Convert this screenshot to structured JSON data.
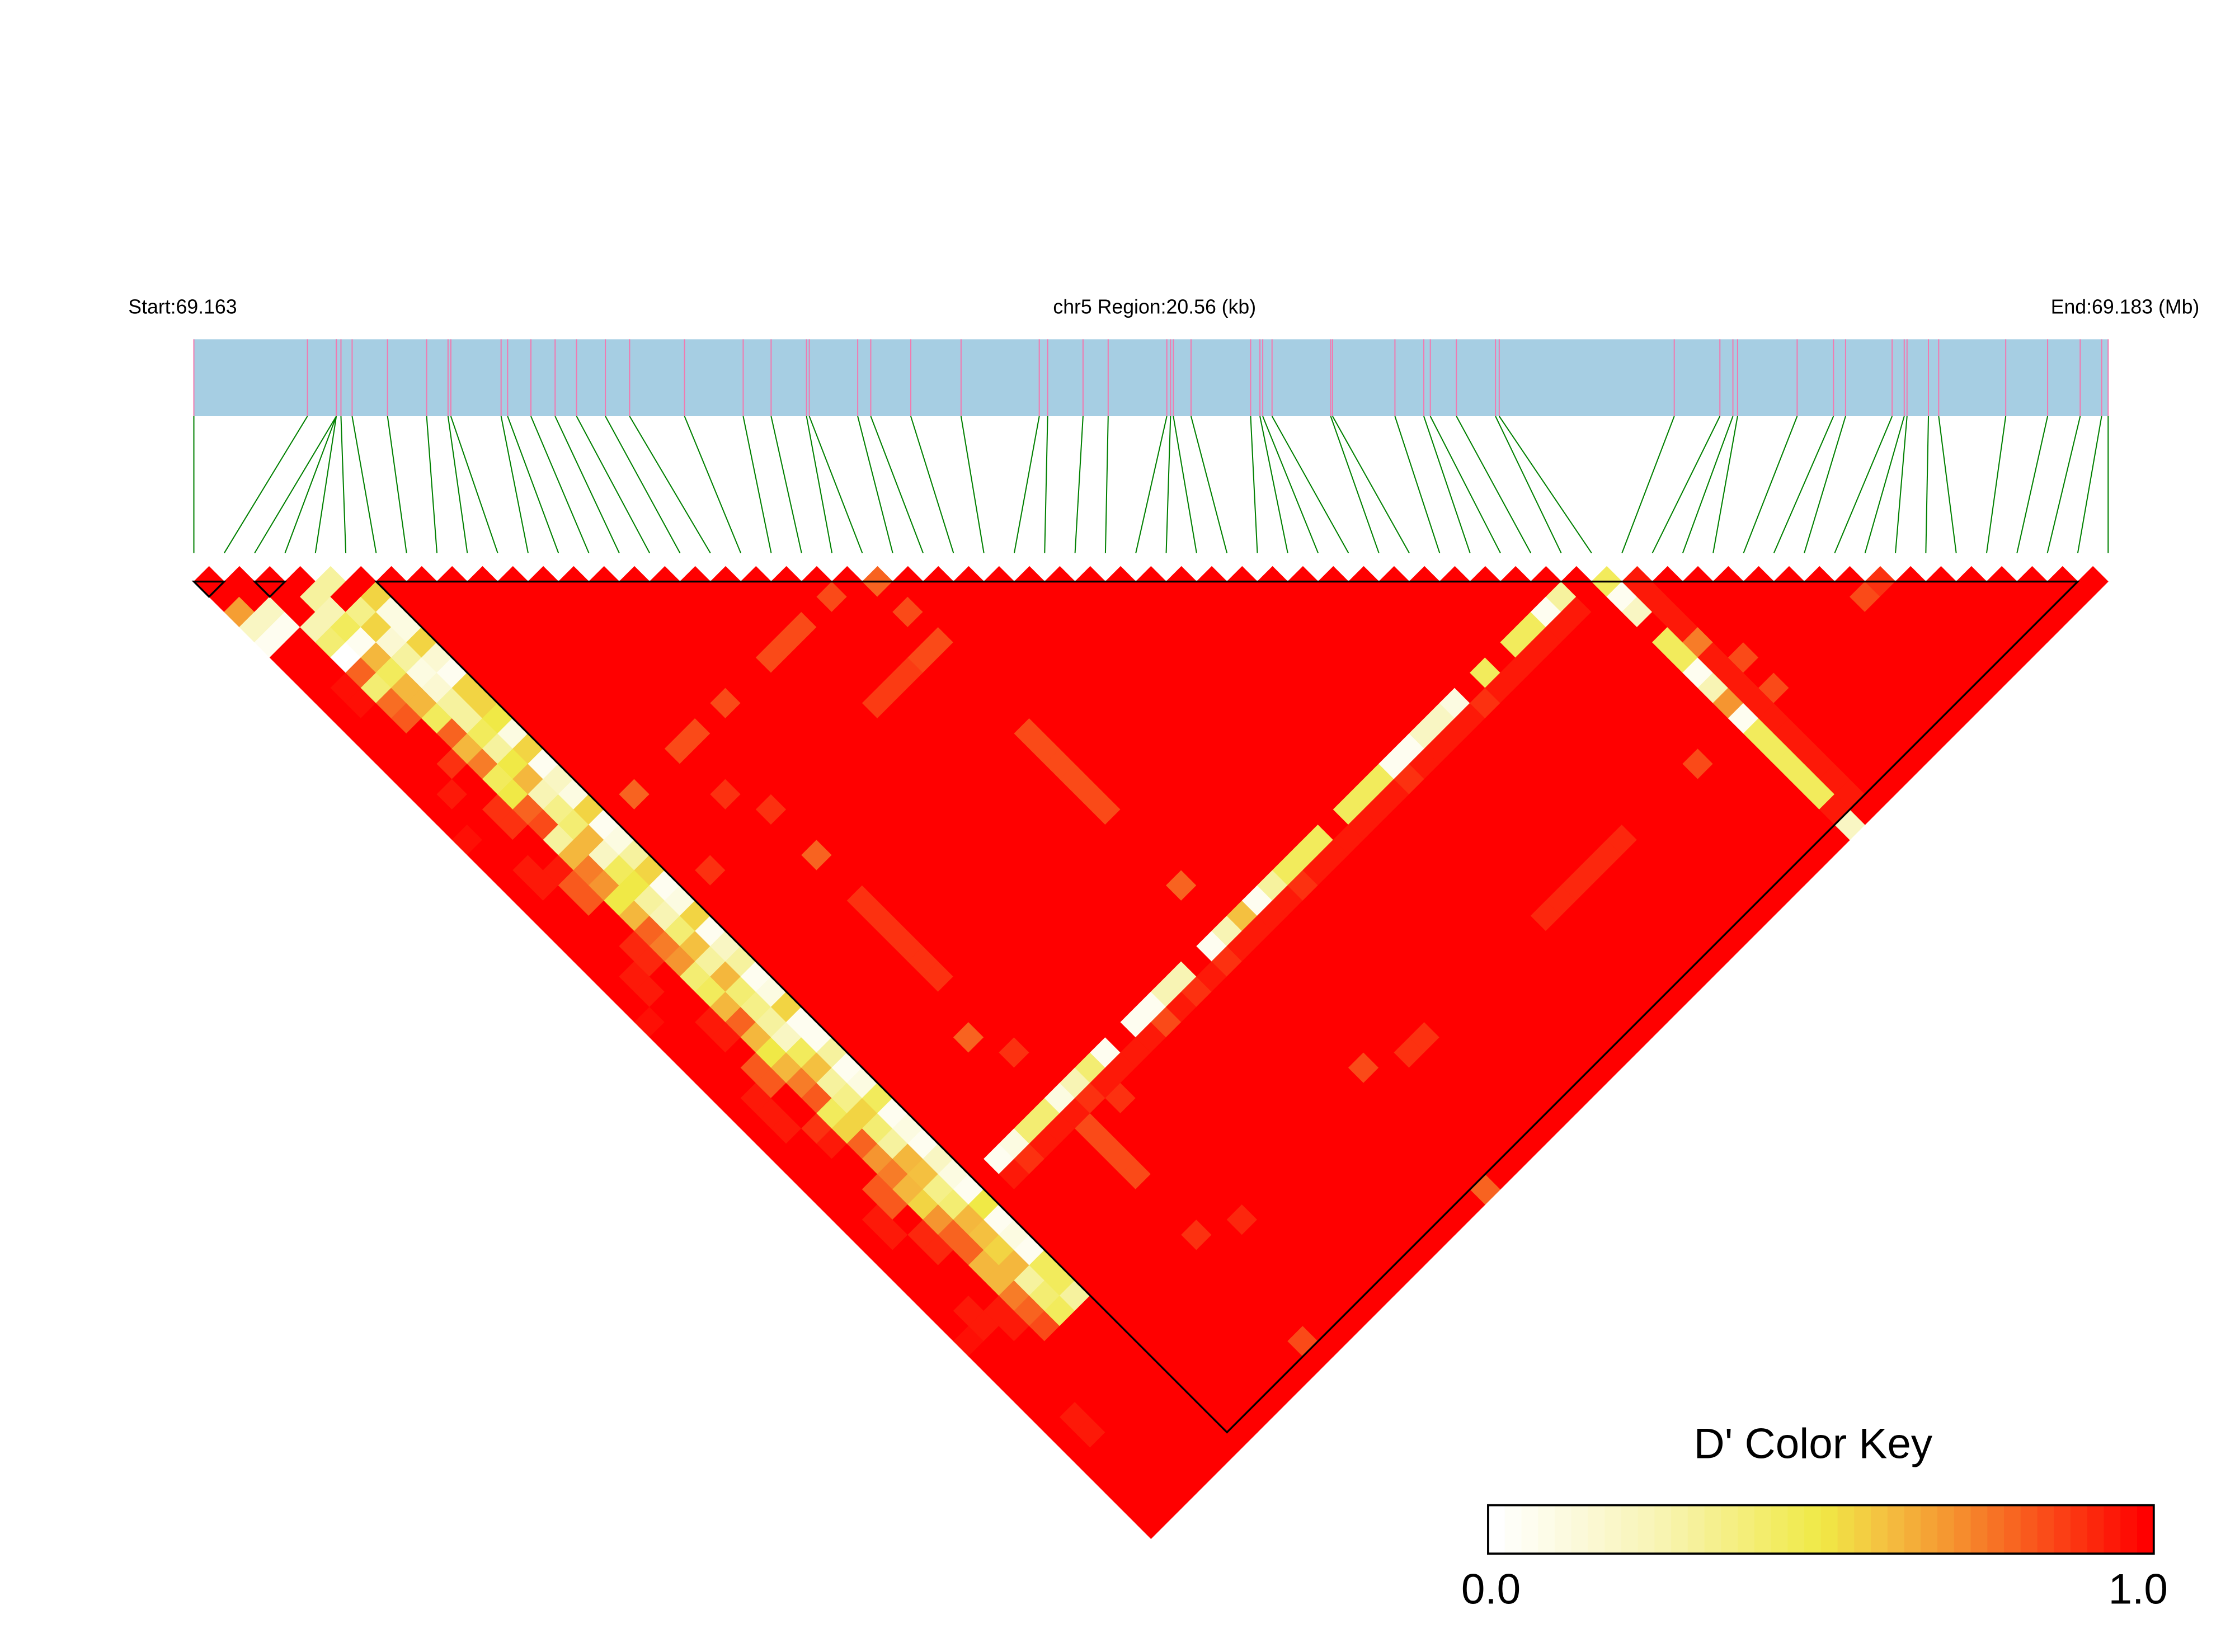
{
  "header": {
    "start_label": "Start:69.163",
    "region_label": "chr5 Region:20.56 (kb)",
    "end_label": "End:69.183 (Mb)"
  },
  "legend": {
    "title": "D' Color Key",
    "min_label": "0.0",
    "max_label": "1.0",
    "steps": 40
  },
  "colors": {
    "gene_bar": "#a6cee3",
    "snp_tick": "#f07ab0",
    "connector": "#008000",
    "block_outline": "#000000",
    "colorscale": [
      [
        0,
        "#ffffff"
      ],
      [
        0.25,
        "#f8f4b4"
      ],
      [
        0.5,
        "#f0e946"
      ],
      [
        0.6,
        "#f4c040"
      ],
      [
        0.7,
        "#f59530"
      ],
      [
        0.85,
        "#fa4a18"
      ],
      [
        1,
        "#ff0000"
      ]
    ]
  },
  "chart_data": {
    "type": "heatmap",
    "measure": "D'",
    "chromosome": "chr5",
    "region_start_mb": 69.163,
    "region_end_mb": 69.183,
    "region_length_kb": 20.56,
    "snp_count": 64,
    "snp_pos_kb": [
      0,
      1.22,
      1.53,
      1.53,
      1.53,
      1.58,
      1.7,
      2.08,
      2.5,
      2.73,
      2.76,
      3.3,
      3.37,
      3.62,
      3.88,
      4.11,
      4.42,
      4.68,
      5.27,
      5.9,
      6.2,
      6.58,
      6.61,
      7.13,
      7.27,
      7.7,
      8.24,
      9.08,
      9.17,
      9.55,
      9.82,
      10.45,
      10.49,
      10.52,
      10.71,
      11.35,
      11.45,
      11.48,
      11.58,
      12.21,
      12.23,
      12.9,
      13.21,
      13.28,
      13.56,
      13.98,
      14.02,
      15.9,
      16.39,
      16.53,
      16.58,
      17.22,
      17.61,
      17.74,
      18.24,
      18.37,
      18.4,
      18.63,
      18.74,
      19.46,
      19.91,
      20.26,
      20.49,
      20.56
    ],
    "blocks": [
      [
        0,
        1
      ],
      [
        2,
        3
      ],
      [
        6,
        62
      ]
    ],
    "default_value": 1.0,
    "value_range": [
      0,
      1
    ],
    "rows_from_snp": {
      "0": [
        1,
        1,
        0.68,
        0.2,
        0.05,
        1,
        1,
        1,
        1,
        1,
        1,
        1,
        1,
        1,
        1,
        1,
        1,
        0.97,
        1,
        1,
        1,
        1,
        1,
        1,
        1,
        1,
        1,
        1,
        1,
        0.97,
        1,
        1,
        1,
        1,
        1,
        1,
        1,
        1,
        1,
        1,
        1,
        1,
        1,
        1,
        1,
        1,
        1,
        1,
        1,
        1,
        0.97,
        1,
        1,
        1,
        1,
        1,
        1,
        1,
        1,
        1,
        1,
        1,
        1
      ],
      "1": [
        1,
        1,
        0.2,
        0.05,
        1,
        1,
        1,
        0.97,
        0.97,
        1,
        1,
        1,
        1,
        1,
        0.95,
        1,
        1,
        1,
        1,
        0.95,
        0.95,
        1,
        1,
        1,
        1,
        1,
        0.95,
        0.95,
        1,
        1,
        1,
        1,
        1,
        1,
        0.95,
        0.95,
        0.95,
        1,
        1,
        1,
        1,
        1,
        0.95,
        0.95,
        1,
        1,
        1,
        1,
        0.95,
        0.95,
        1,
        1,
        1,
        1,
        1,
        0.95,
        0.95,
        1,
        1,
        1,
        1,
        1
      ],
      "2": [
        1,
        1,
        1,
        0.25,
        0.4,
        0,
        0.8,
        0.4,
        0.78,
        0.82,
        1,
        1,
        0.9,
        1,
        1,
        0.9,
        0.9,
        1,
        1,
        0.95,
        0.82,
        0.82,
        1,
        1,
        0.92,
        0.92,
        1,
        1,
        1,
        0.95,
        0.95,
        1,
        0.82,
        0.82,
        1,
        1,
        0.9,
        0.95,
        1,
        1,
        0.82,
        0.82,
        1,
        0.92,
        0.92,
        1,
        1,
        1,
        0.95,
        0.95,
        1
      ],
      "3": [
        1,
        0.3,
        0.25,
        0.45,
        0.05,
        0.62,
        0.45,
        0.62,
        0.62,
        0.45,
        0.8,
        0.62,
        0.75,
        0.45,
        0.5,
        0.8,
        0.85,
        0.3,
        0.62,
        0.75,
        0.7,
        0.5,
        0.62,
        0.8,
        0.75,
        0.7,
        0.4,
        0.45,
        0.62,
        0.8,
        0.62,
        0.5,
        0.62,
        0.75,
        0.82,
        0.45,
        0.55,
        0.8,
        0.7,
        0.75,
        0.62,
        0.55,
        0.7,
        0.8,
        0.8,
        0.62,
        0.62,
        0.75,
        0.8,
        0.85
      ],
      "4": [
        0.3,
        1,
        0.35,
        0.55,
        0.15,
        0.3,
        0.1,
        0.15,
        0.3,
        0.3,
        0.45,
        0.3,
        0.5,
        0.62,
        0.25,
        0.35,
        0.4,
        0.62,
        0.2,
        0.45,
        0.5,
        0.3,
        0.25,
        0.4,
        0.6,
        0.3,
        0.62,
        0.4,
        0.35,
        0.3,
        0.2,
        0.45,
        0.6,
        0.3,
        0.35,
        0.55,
        0.4,
        0.3,
        0.62,
        0.6,
        0.35,
        0.4,
        0.62,
        0.6,
        0.55,
        0.62,
        0.3,
        0.4,
        0.45
      ],
      "5": [
        1,
        0.55,
        0.1,
        0.1,
        0.55,
        0.15,
        0.05,
        0.55,
        0.55,
        0.5,
        0.1,
        0.55,
        0.05,
        0.2,
        0.1,
        0.55,
        0.05,
        0.1,
        0.3,
        0.55,
        0.05,
        0.1,
        0.55,
        0.05,
        0.2,
        0.3,
        0.05,
        0.1,
        0.55,
        0.05,
        0.05,
        0.3,
        0.05,
        0.1,
        0.45,
        0.05,
        0.1,
        0.05,
        0.2,
        0.1,
        0.05,
        0.5,
        0.05,
        0.1,
        0.05,
        0.45,
        0.45,
        0.3
      ],
      "46": [
        0.45,
        0.05,
        0.2,
        1,
        0.45,
        0.45,
        0.05,
        0.25,
        0.7,
        0.05,
        0.45,
        0.45,
        0.45,
        0.45,
        0.45,
        0.95,
        0.2
      ],
      "47": [
        0.95,
        0.95,
        0.95,
        0.95,
        0.75,
        0.95,
        0.95,
        0.95,
        0.95,
        0.95,
        0.95,
        0.95,
        0.95,
        0.95,
        0.95,
        1
      ]
    },
    "columns_to_snp": {
      "46": {
        "from": 7,
        "values": [
          0.05,
          0.1,
          0.4,
          0.4,
          0.1,
          0.25,
          0.4,
          0.05,
          1,
          0.05,
          0.05,
          0.25,
          0.25,
          1,
          0.05,
          0.25,
          0.6,
          0.05,
          0.3,
          0.45,
          0.45,
          0.45,
          1,
          0.45,
          0.45,
          0.45,
          0.05,
          0.05,
          0.2,
          0.2,
          0.1,
          1,
          0.45,
          1,
          0.45,
          0.45,
          0.05,
          0.3,
          1
        ]
      },
      "47": {
        "from": 7,
        "values": [
          0.95,
          0.9,
          0.95,
          0.95,
          0.95,
          0.9,
          0.95,
          0.95,
          0.95,
          0.95,
          0.85,
          0.95,
          0.95,
          0.95,
          0.9,
          0.95,
          0.95,
          0.95,
          0.95,
          0.9,
          0.95,
          0.95,
          0.95,
          0.95,
          0.95,
          0.95,
          0.9,
          0.95,
          0.95,
          0.95,
          0.95,
          0.9,
          0.95,
          0.95,
          0.95,
          0.95,
          0.95,
          0.95,
          1
        ]
      }
    },
    "scattered": [
      [
        20,
        22,
        0.85
      ],
      [
        22,
        23,
        0.8
      ],
      [
        22,
        25,
        0.85
      ],
      [
        16,
        22,
        0.85
      ],
      [
        17,
        22,
        0.85
      ],
      [
        18,
        22,
        0.85
      ],
      [
        21,
        27,
        0.85
      ],
      [
        22,
        27,
        0.85
      ],
      [
        18,
        27,
        0.88
      ],
      [
        19,
        27,
        0.88
      ],
      [
        20,
        27,
        0.88
      ],
      [
        13,
        22,
        0.85
      ],
      [
        10,
        22,
        0.85
      ],
      [
        11,
        22,
        0.85
      ],
      [
        22,
        33,
        0.85
      ],
      [
        22,
        34,
        0.85
      ],
      [
        22,
        35,
        0.85
      ],
      [
        22,
        36,
        0.85
      ],
      [
        22,
        37,
        0.85
      ],
      [
        22,
        38,
        0.85
      ],
      [
        7,
        22,
        0.8
      ],
      [
        10,
        25,
        0.9
      ],
      [
        11,
        27,
        0.9
      ],
      [
        11,
        30,
        0.8
      ],
      [
        7,
        27,
        0.9
      ],
      [
        10,
        41,
        0.8
      ],
      [
        11,
        43,
        0.9
      ],
      [
        22,
        43,
        0.8
      ],
      [
        19,
        47,
        0.9
      ],
      [
        11,
        33,
        0.9
      ],
      [
        11,
        34,
        0.9
      ],
      [
        11,
        35,
        0.9
      ],
      [
        11,
        36,
        0.9
      ],
      [
        11,
        37,
        0.9
      ],
      [
        11,
        38,
        0.9
      ],
      [
        22,
        55,
        0.85
      ],
      [
        24,
        56,
        0.9
      ],
      [
        25,
        56,
        0.9
      ],
      [
        33,
        56,
        0.92
      ],
      [
        34,
        56,
        0.92
      ],
      [
        35,
        56,
        0.92
      ],
      [
        36,
        56,
        0.92
      ],
      [
        37,
        56,
        0.92
      ],
      [
        38,
        56,
        0.92
      ],
      [
        13,
        48,
        0.9
      ],
      [
        11,
        48,
        0.85
      ],
      [
        11,
        49,
        0.85
      ],
      [
        11,
        50,
        0.85
      ],
      [
        11,
        51,
        0.85
      ],
      [
        13,
        56,
        0.92
      ],
      [
        11,
        55,
        0.9
      ],
      [
        11,
        62,
        0.85
      ],
      [
        22,
        63,
        0.8
      ],
      [
        48,
        54,
        0.85
      ],
      [
        48,
        56,
        0.85
      ],
      [
        43,
        56,
        0.85
      ],
      [
        54,
        56,
        0.85
      ],
      [
        55,
        56,
        0.9
      ]
    ]
  }
}
